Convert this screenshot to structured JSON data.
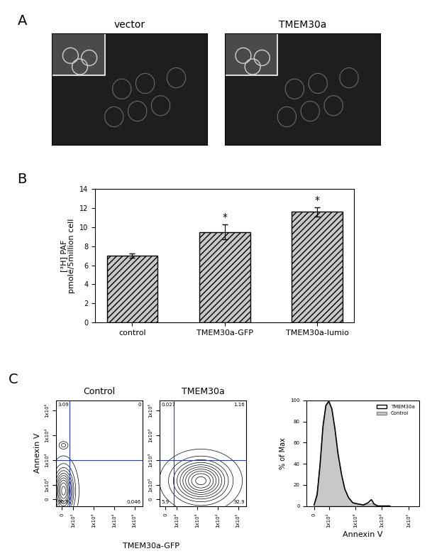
{
  "chart_data": [
    {
      "type": "image",
      "panel_label": "A",
      "title": "vector"
    },
    {
      "type": "image",
      "title": "TMEM30a"
    },
    {
      "type": "bar",
      "panel_label": "B",
      "categories": [
        "control",
        "TMEM30a-GFP",
        "TMEM30a-lumio"
      ],
      "values": [
        7.0,
        9.5,
        11.6
      ],
      "errors": [
        0.2,
        0.8,
        0.5
      ],
      "annotations": [
        null,
        "*",
        "*"
      ],
      "color": "#c8c8c8",
      "y_label": "[³H] PAF\npmole/5million cell",
      "ylim": [
        0,
        14
      ],
      "yticks": [
        0,
        2,
        4,
        6,
        8,
        10,
        12,
        14
      ]
    },
    {
      "type": "contour",
      "panel_label": "C",
      "title": "Control",
      "y_label": "Annexin V",
      "x_label": "TMEM30a-GFP",
      "log": true,
      "xlim": [
        -50,
        250000
      ],
      "ylim": [
        -50,
        250000
      ],
      "xticks": [
        0,
        {
          "value": 100,
          "label": "1x10²"
        },
        {
          "value": 1000,
          "label": "1x10³"
        },
        {
          "value": 10000,
          "label": "1x10⁴"
        },
        {
          "value": 100000,
          "label": "1x10⁵"
        }
      ],
      "yticks": [
        0,
        {
          "value": 100,
          "label": "1x10²"
        },
        {
          "value": 1000,
          "label": "1x10³"
        },
        {
          "value": 10000,
          "label": "1x10⁴"
        },
        {
          "value": 100000,
          "label": "1x10⁵"
        }
      ],
      "gates": {
        "x": 70,
        "y": 1000
      },
      "quadrant_values": [
        3.09,
        0,
        96.9,
        0.046
      ],
      "populations": [
        {
          "center": [
            15,
            60
          ],
          "spread_decades": [
            0.3,
            0.55
          ],
          "weight": 1
        },
        {
          "center": [
            15,
            4000
          ],
          "spread_decades": [
            0.12,
            0.08
          ],
          "weight": 0.2
        }
      ]
    },
    {
      "type": "contour",
      "title": "TMEM30a",
      "log": true,
      "xlim": [
        -50,
        250000
      ],
      "ylim": [
        -50,
        250000
      ],
      "xticks": [
        0,
        {
          "value": 100,
          "label": "1x10²"
        },
        {
          "value": 1000,
          "label": "1x10³"
        },
        {
          "value": 10000,
          "label": "1x10⁴"
        },
        {
          "value": 100000,
          "label": "1x10⁵"
        }
      ],
      "yticks": [
        0,
        {
          "value": 100,
          "label": "1x10²"
        },
        {
          "value": 1000,
          "label": "1x10³"
        },
        {
          "value": 10000,
          "label": "1x10⁴"
        },
        {
          "value": 100000,
          "label": "1x10⁵"
        }
      ],
      "gates": {
        "x": 70,
        "y": 1000
      },
      "quadrant_values": [
        0.027,
        1.16,
        5.9,
        92.9
      ],
      "populations": [
        {
          "center": [
            1500,
            150
          ],
          "spread_decades": [
            0.8,
            0.5
          ],
          "weight": 1
        }
      ]
    },
    {
      "type": "line",
      "x_label": "Annexin V",
      "y_label": "% of Max",
      "log": "x",
      "x": [
        0,
        20,
        40,
        60,
        80,
        100,
        130,
        170,
        220,
        300,
        400,
        550,
        800,
        1200,
        2000,
        3000,
        4000,
        5000,
        7000,
        20000
      ],
      "series": [
        {
          "name": "TMEM30a",
          "color": "#000000",
          "type": "line",
          "values": [
            1,
            10,
            38,
            75,
            95,
            99,
            92,
            73,
            50,
            30,
            16,
            8,
            3,
            2,
            1,
            3,
            6,
            2,
            0,
            0
          ]
        },
        {
          "name": "Control",
          "color": "#c8c8c8",
          "type": "area",
          "values": [
            2,
            15,
            45,
            80,
            97,
            100,
            90,
            70,
            48,
            28,
            15,
            7,
            3,
            2,
            1,
            2,
            3,
            1,
            0,
            0
          ]
        }
      ],
      "xlim": [
        -50,
        250000
      ],
      "ylim": [
        0,
        100
      ],
      "xticks": [
        0,
        {
          "value": 100,
          "label": "1x10²"
        },
        {
          "value": 1000,
          "label": "1x10³"
        },
        {
          "value": 10000,
          "label": "1x10⁴"
        },
        {
          "value": 100000,
          "label": "1x10⁵"
        }
      ],
      "yticks": [
        0,
        20,
        40,
        60,
        80,
        100
      ],
      "legend": "upper right"
    }
  ]
}
